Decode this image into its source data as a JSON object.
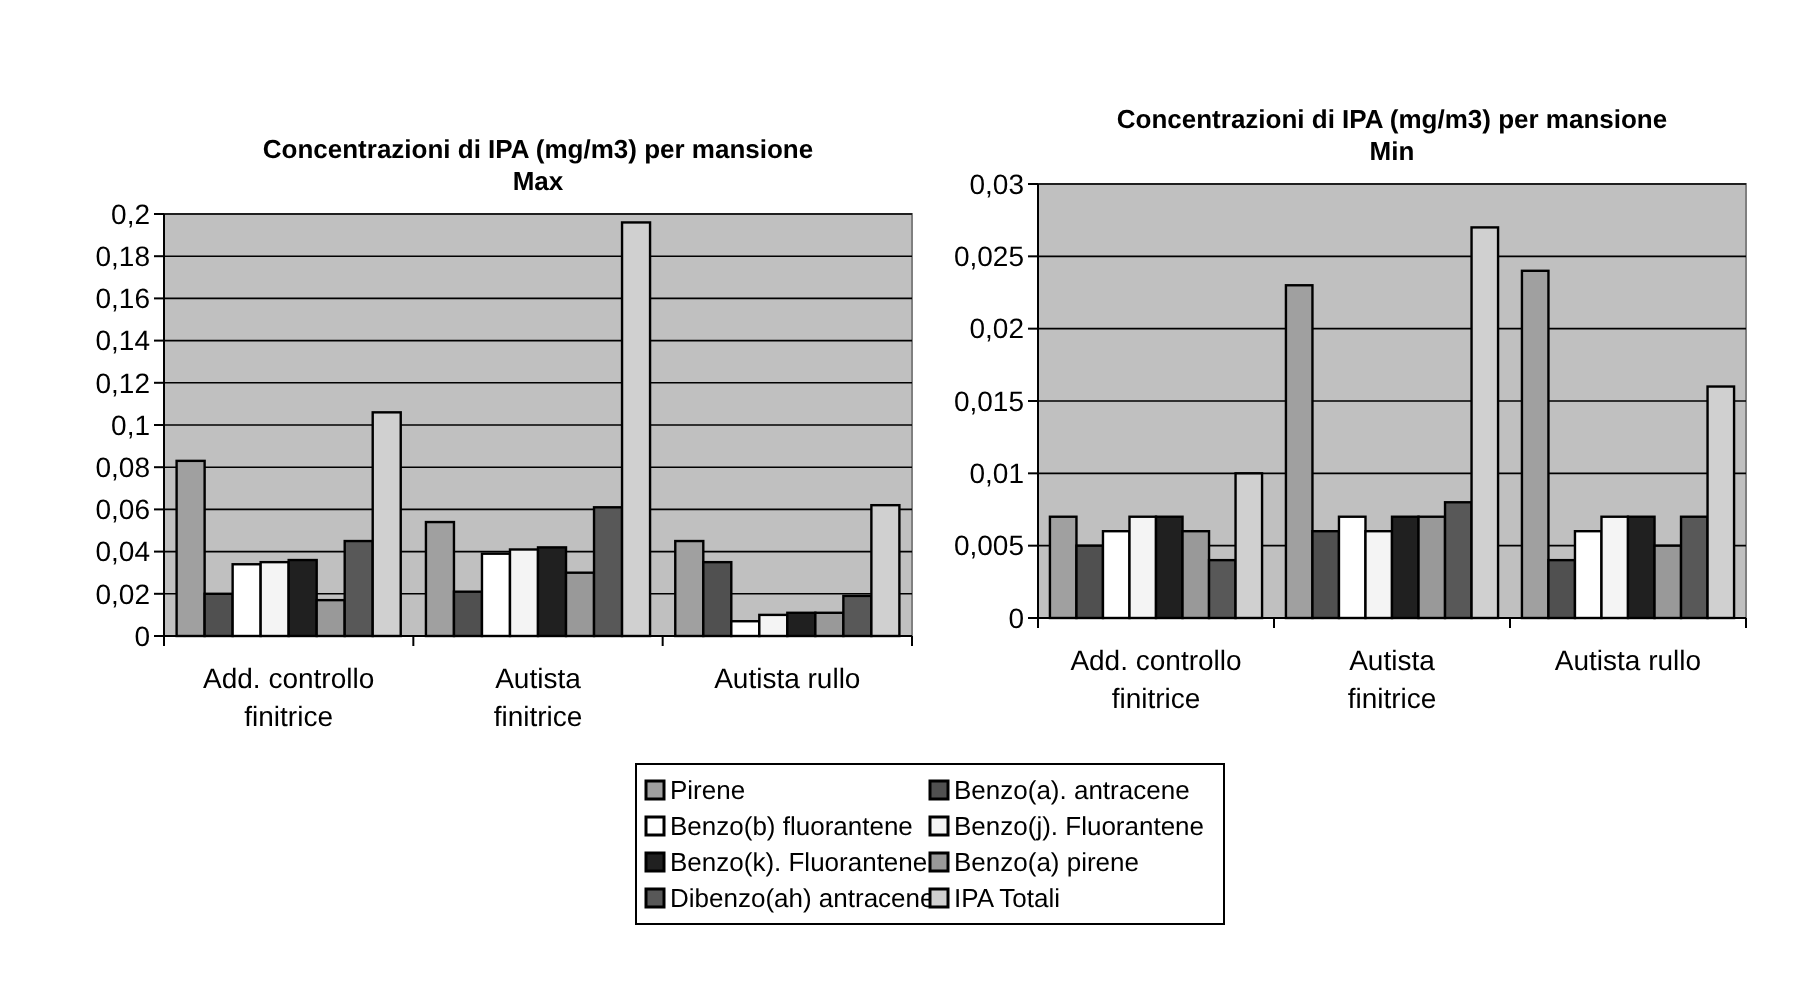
{
  "chart_data": [
    {
      "type": "bar",
      "title": "Concentrazioni di IPA (mg/m3) per mansione",
      "subtitle": "Max",
      "categories": [
        "Add. controllo finitrice",
        "Autista finitrice",
        "Autista  rullo"
      ],
      "ylim": [
        0,
        0.2
      ],
      "yticks": [
        0,
        {
          "value": 0.02,
          "label": "0,02"
        },
        {
          "value": 0.04,
          "label": "0,04"
        },
        {
          "value": 0.06,
          "label": "0,06"
        },
        {
          "value": 0.08,
          "label": "0,08"
        },
        {
          "value": 0.1,
          "label": "0,1"
        },
        {
          "value": 0.12,
          "label": "0,12"
        },
        {
          "value": 0.14,
          "label": "0,14"
        },
        {
          "value": 0.16,
          "label": "0,16"
        },
        {
          "value": 0.18,
          "label": "0,18"
        },
        {
          "value": 0.2,
          "label": "0,2"
        }
      ],
      "grid": "y",
      "legend": "bottom",
      "series": [
        {
          "name": "Pirene",
          "color": "#a0a0a0",
          "values": [
            0.083,
            0.054,
            0.045
          ]
        },
        {
          "name": "Benzo(a). antracene",
          "color": "#505050",
          "values": [
            0.02,
            0.021,
            0.035
          ]
        },
        {
          "name": "Benzo(b) fluorantene",
          "color": "#ffffff",
          "values": [
            0.034,
            0.039,
            0.007
          ]
        },
        {
          "name": "Benzo(j). Fluorantene",
          "color": "#f4f4f4",
          "values": [
            0.035,
            0.041,
            0.01
          ]
        },
        {
          "name": "Benzo(k). Fluorantene",
          "color": "#202020",
          "values": [
            0.036,
            0.042,
            0.011
          ]
        },
        {
          "name": "Benzo(a) pirene",
          "color": "#999999",
          "values": [
            0.017,
            0.03,
            0.011
          ]
        },
        {
          "name": "Dibenzo(ah) antracene",
          "color": "#585858",
          "values": [
            0.045,
            0.061,
            0.019
          ]
        },
        {
          "name": "IPA Totali",
          "color": "#d0d0d0",
          "values": [
            0.106,
            0.196,
            0.062
          ]
        }
      ]
    },
    {
      "type": "bar",
      "title": "Concentrazioni di IPA (mg/m3) per mansione",
      "subtitle": "Min",
      "categories": [
        "Add. controllo finitrice",
        "Autista finitrice",
        "Autista  rullo"
      ],
      "ylim": [
        0,
        0.03
      ],
      "yticks": [
        0,
        {
          "value": 0.005,
          "label": "0,005"
        },
        {
          "value": 0.01,
          "label": "0,01"
        },
        {
          "value": 0.015,
          "label": "0,015"
        },
        {
          "value": 0.02,
          "label": "0,02"
        },
        {
          "value": 0.025,
          "label": "0,025"
        },
        {
          "value": 0.03,
          "label": "0,03"
        }
      ],
      "grid": "y",
      "series": [
        {
          "color": "#a0a0a0",
          "values": [
            0.007,
            0.023,
            0.024
          ]
        },
        {
          "color": "#505050",
          "values": [
            0.005,
            0.006,
            0.004
          ]
        },
        {
          "color": "#ffffff",
          "values": [
            0.006,
            0.007,
            0.006
          ]
        },
        {
          "color": "#f4f4f4",
          "values": [
            0.007,
            0.006,
            0.007
          ]
        },
        {
          "color": "#202020",
          "values": [
            0.007,
            0.007,
            0.007
          ]
        },
        {
          "color": "#999999",
          "values": [
            0.006,
            0.007,
            0.005
          ]
        },
        {
          "color": "#585858",
          "values": [
            0.004,
            0.008,
            0.007
          ]
        },
        {
          "color": "#d0d0d0",
          "values": [
            0.01,
            0.027,
            0.016
          ]
        }
      ]
    }
  ]
}
